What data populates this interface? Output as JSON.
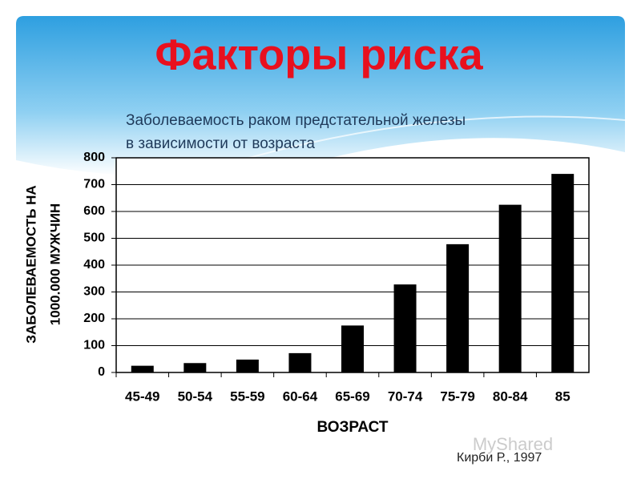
{
  "chart_data": {
    "type": "bar",
    "title": "Факторы риска",
    "subtitle": [
      "Заболеваемость раком предстательной железы",
      "в зависимости от возраста"
    ],
    "y_label": [
      "ЗАБОЛЕВАЕМОСТЬ НА",
      "1000.000 МУЖЧИН"
    ],
    "x_label": "ВОЗРАСТ",
    "source": "Кирби Р., 1997",
    "watermark": "MyShared",
    "categories": [
      "45-49",
      "50-54",
      "55-59",
      "60-64",
      "65-69",
      "70-74",
      "75-79",
      "80-84",
      "85"
    ],
    "values": [
      25,
      35,
      48,
      72,
      175,
      328,
      478,
      625,
      740
    ],
    "color": "#000000",
    "ylim": [
      0,
      800
    ],
    "yticks": [
      0,
      100,
      200,
      300,
      400,
      500,
      600,
      700,
      800
    ],
    "grid": true
  }
}
